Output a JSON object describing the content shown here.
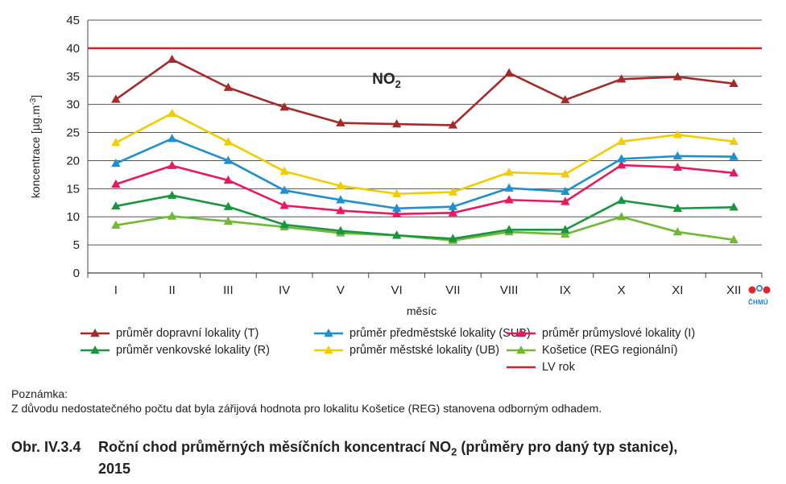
{
  "chart_data": {
    "type": "line",
    "title": "NO2",
    "xlabel": "měsíc",
    "ylabel": "koncentrace [µg.m-3]",
    "ylim": [
      0,
      45
    ],
    "yticks": [
      0,
      5,
      10,
      15,
      20,
      25,
      30,
      35,
      40,
      45
    ],
    "grid": true,
    "legend_placement": "bottom",
    "categories": [
      "I",
      "II",
      "III",
      "IV",
      "V",
      "VI",
      "VII",
      "VIII",
      "IX",
      "X",
      "XI",
      "XII"
    ],
    "series": [
      {
        "name": "průměr dopravní lokality (T)",
        "color": "#a52a2a",
        "marker": "triangle",
        "values": [
          30.9,
          38.0,
          33.0,
          29.5,
          26.7,
          26.5,
          26.3,
          35.6,
          30.8,
          34.5,
          34.9,
          33.7
        ]
      },
      {
        "name": "průměr městské lokality (UB)",
        "color": "#f2cc00",
        "marker": "triangle",
        "values": [
          23.2,
          28.4,
          23.3,
          18.1,
          15.5,
          14.1,
          14.4,
          17.9,
          17.6,
          23.4,
          24.6,
          23.4
        ]
      },
      {
        "name": "průměr předměstské lokality (SUB)",
        "color": "#1e8fcf",
        "marker": "triangle",
        "values": [
          19.5,
          23.9,
          20.0,
          14.7,
          13.0,
          11.5,
          11.8,
          15.1,
          14.5,
          20.3,
          20.8,
          20.7
        ]
      },
      {
        "name": "průměr venkovské lokality (R)",
        "color": "#1a9640",
        "marker": "triangle",
        "values": [
          11.9,
          13.8,
          11.8,
          8.6,
          7.5,
          6.7,
          6.1,
          7.7,
          7.7,
          12.9,
          11.5,
          11.7
        ]
      },
      {
        "name": "průměr průmyslové lokality (I)",
        "color": "#e8195d",
        "marker": "triangle",
        "values": [
          15.8,
          19.1,
          16.5,
          12.0,
          11.1,
          10.5,
          10.7,
          13.0,
          12.7,
          19.2,
          18.8,
          17.8
        ]
      },
      {
        "name": "Košetice (REG regionální)",
        "color": "#6fb935",
        "marker": "triangle",
        "values": [
          8.5,
          10.1,
          9.2,
          8.2,
          7.1,
          6.7,
          5.8,
          7.3,
          6.9,
          10.0,
          7.3,
          5.9
        ]
      }
    ],
    "reference_lines": [
      {
        "name": "LV rok",
        "color": "#d42222",
        "value": 40
      }
    ]
  },
  "legend_order": [
    0,
    2,
    4,
    3,
    1,
    5
  ],
  "note_title": "Poznámka:",
  "note_text": "Z důvodu nedostatečného počtu dat byla zářijová hodnota pro lokalitu Košetice (REG) stanovena odborným odhadem.",
  "caption_number": "Obr. IV.3.4",
  "caption_text_line1": "Roční chod průměrných měsíčních koncentrací NO2 (průměry pro daný typ stanice),",
  "caption_text_line2": "2015",
  "logo_text": "ČHMÚ"
}
